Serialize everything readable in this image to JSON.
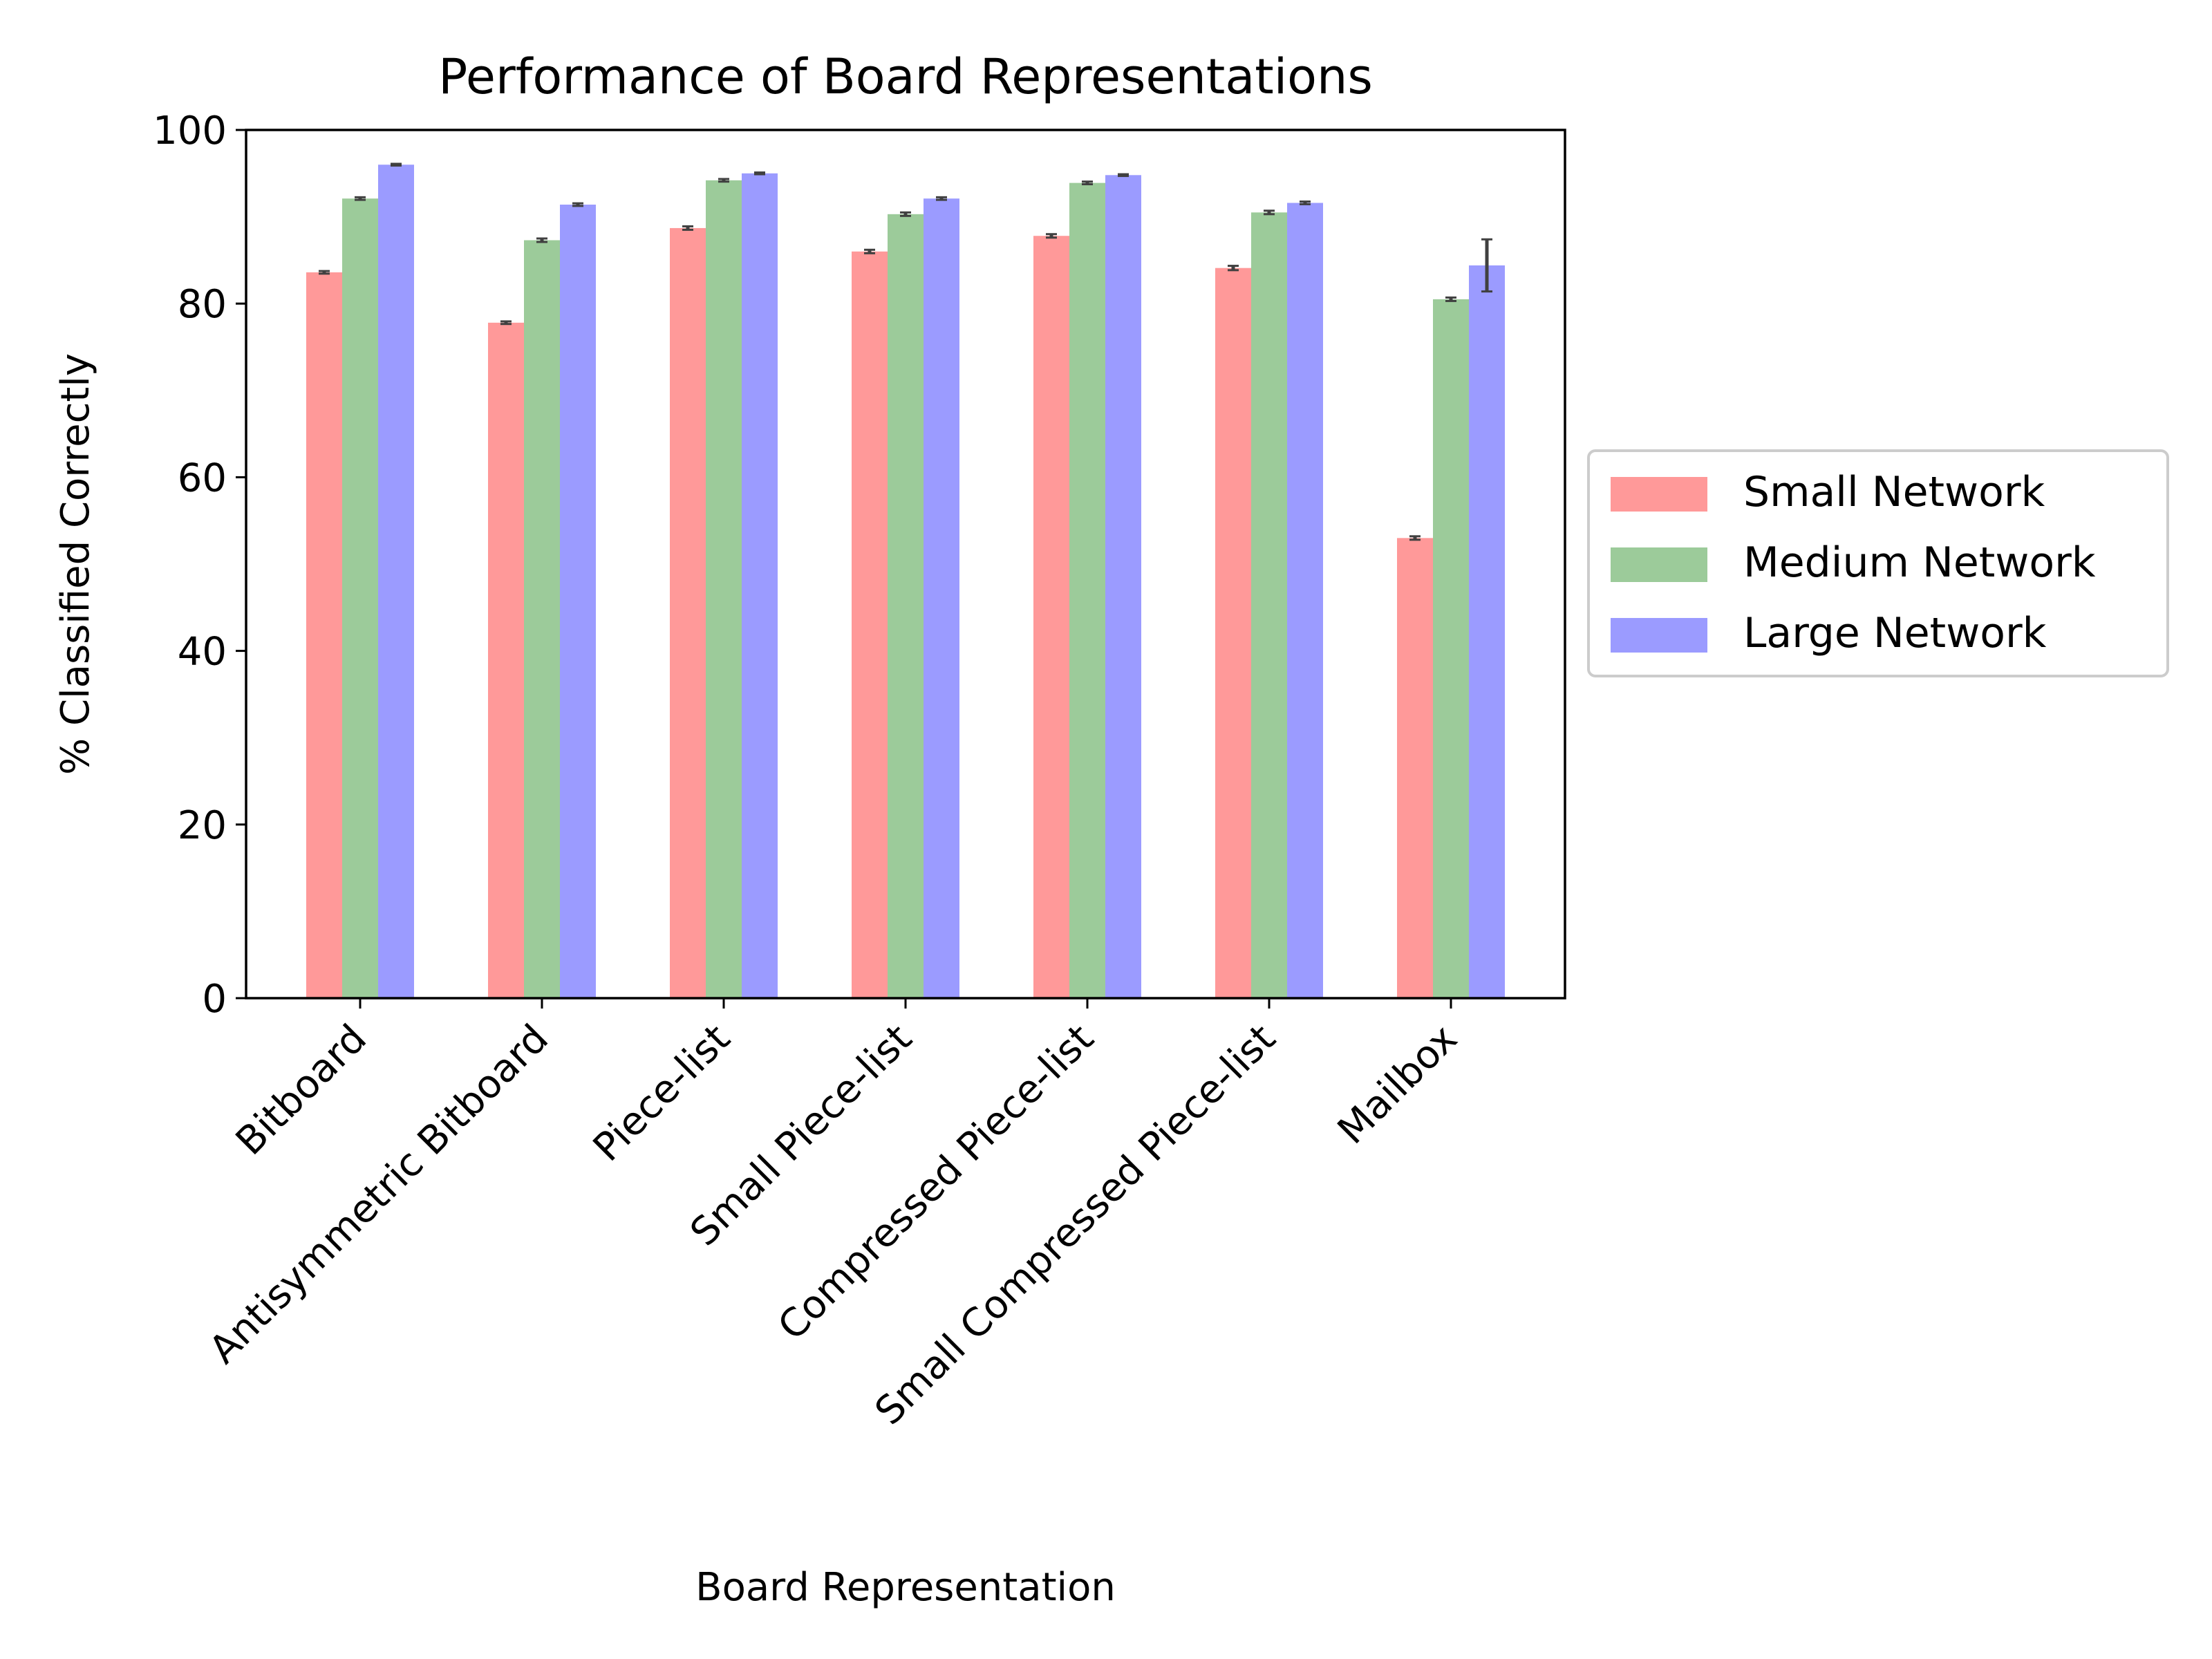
{
  "chart_data": {
    "type": "bar",
    "title": "Performance of Board Representations",
    "xlabel": "Board Representation",
    "ylabel": "% Classified Correctly",
    "ylim": [
      0,
      100
    ],
    "yticks": [
      0,
      20,
      40,
      60,
      80,
      100
    ],
    "grid": false,
    "legend_position": "right-outside",
    "categories": [
      "Bitboard",
      "Antisymmetric Bitboard",
      "Piece-list",
      "Small Piece-list",
      "Compressed Piece-list",
      "Small Compressed Piece-list",
      "Mailbox"
    ],
    "series": [
      {
        "name": "Small Network",
        "color": "#ff9999",
        "values": [
          83.6,
          77.8,
          88.7,
          86.0,
          87.8,
          84.1,
          53.0
        ],
        "errors": [
          0.15,
          0.15,
          0.2,
          0.2,
          0.2,
          0.25,
          0.2
        ]
      },
      {
        "name": "Medium Network",
        "color": "#9ccb9a",
        "values": [
          92.1,
          87.3,
          94.2,
          90.3,
          93.9,
          90.5,
          80.5
        ],
        "errors": [
          0.15,
          0.2,
          0.15,
          0.2,
          0.15,
          0.2,
          0.2
        ]
      },
      {
        "name": "Large Network",
        "color": "#9b9bff",
        "values": [
          96.0,
          91.4,
          95.0,
          92.1,
          94.8,
          91.6,
          84.4
        ],
        "errors": [
          0.1,
          0.15,
          0.1,
          0.15,
          0.1,
          0.15,
          3.0
        ]
      }
    ]
  }
}
